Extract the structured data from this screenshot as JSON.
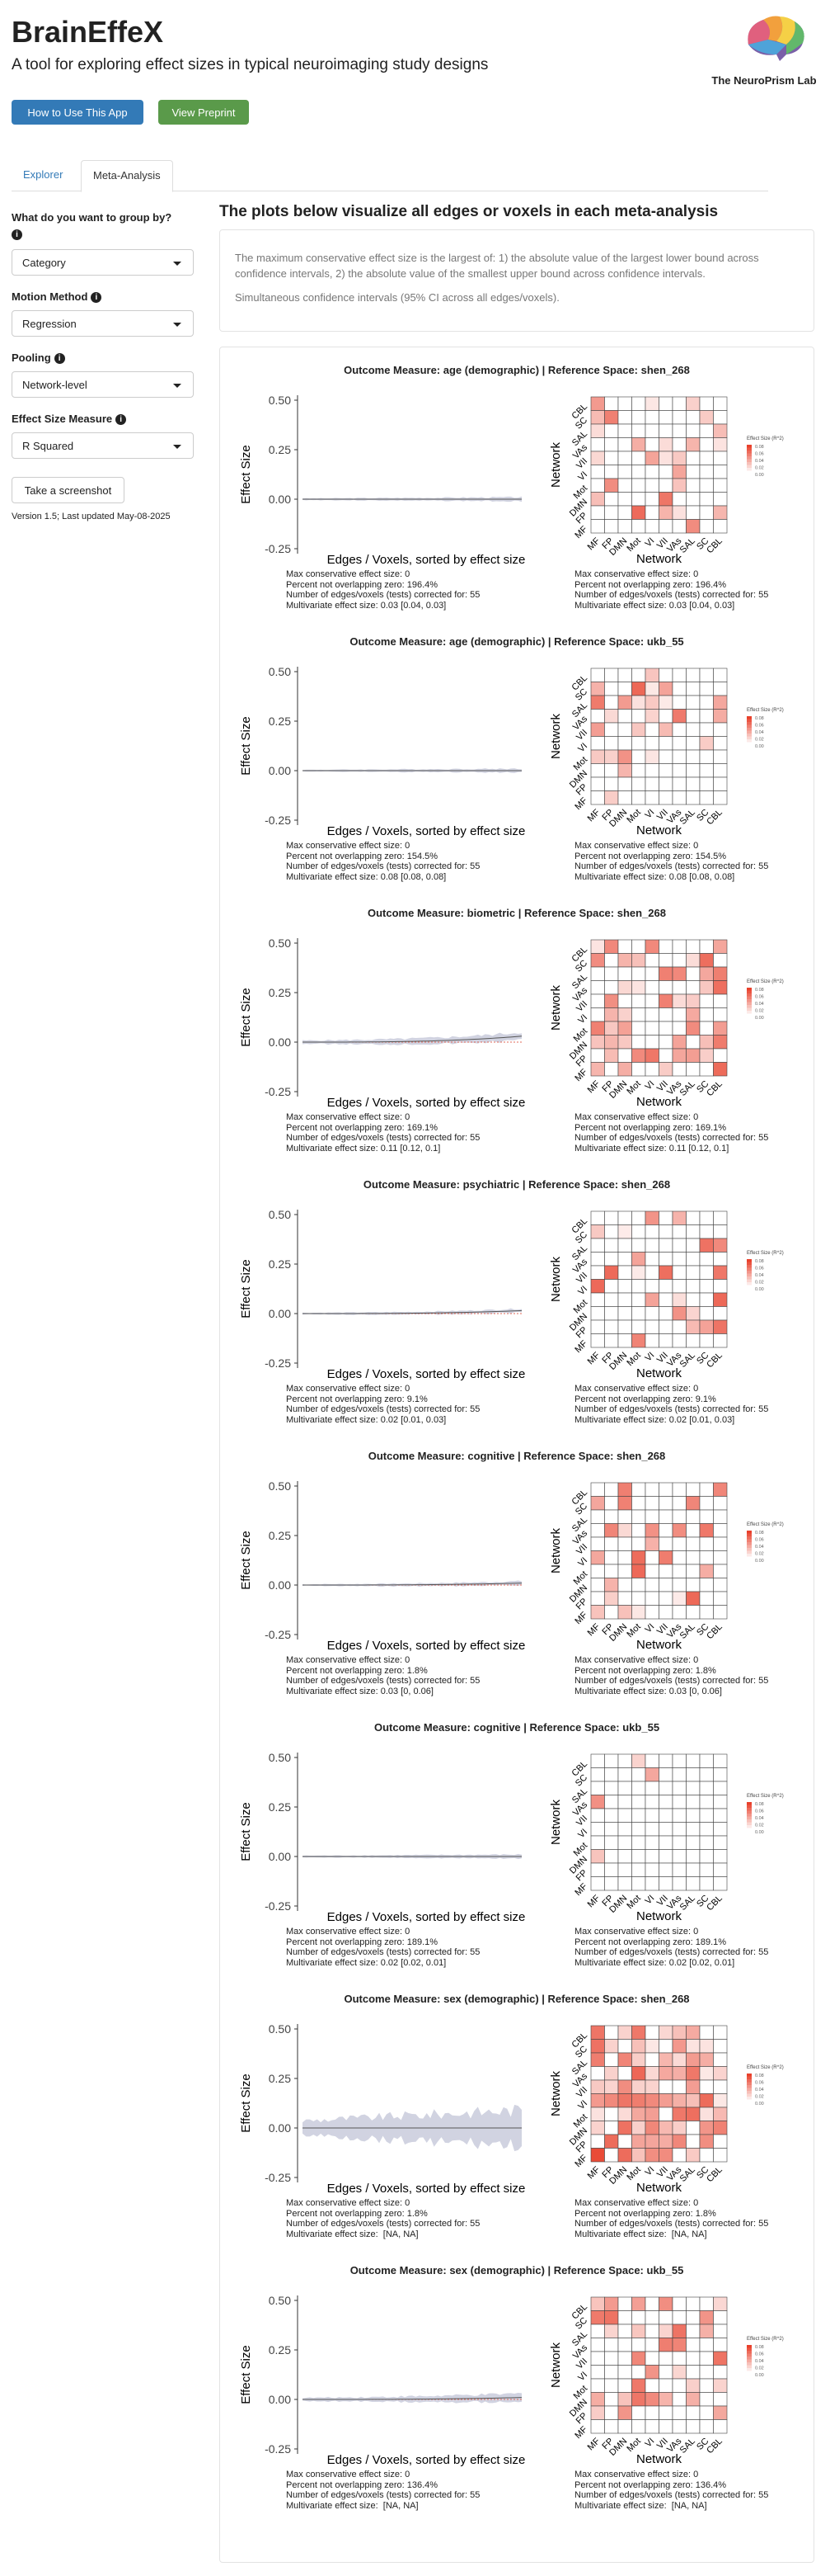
{
  "header": {
    "title": "BrainEffeX",
    "subtitle": "A tool for exploring effect sizes in typical neuroimaging study designs",
    "logo_label": "The NeuroPrism Lab",
    "help_button": "How to Use This App",
    "preprint_button": "View Preprint"
  },
  "tabs": [
    {
      "label": "Explorer"
    },
    {
      "label": "Meta-Analysis"
    }
  ],
  "sidebar": {
    "group_by": {
      "label": "What do you want to group by?",
      "value": "Category"
    },
    "motion": {
      "label": "Motion Method",
      "value": "Regression"
    },
    "pooling": {
      "label": "Pooling",
      "value": "Network-level"
    },
    "effect_size": {
      "label": "Effect Size Measure",
      "value": "R Squared"
    },
    "screenshot_button": "Take a screenshot",
    "version": "Version 1.5; Last updated May-08-2025"
  },
  "main": {
    "heading": "The plots below visualize all edges or voxels in each meta-analysis",
    "info_p1": "The maximum conservative effect size is the largest of: 1) the absolute value of the largest lower bound across confidence intervals, 2) the absolute value of the smallest upper bound across confidence intervals.",
    "info_p2": "Simultaneous confidence intervals (95% CI across all edges/voxels)."
  },
  "colors": {
    "heat_max": "#e8412c",
    "heat_low": "#fde5dc",
    "line": "#e06a5a",
    "ci": "#c9cbdc"
  },
  "chart_data": {
    "type": "line+heatmap",
    "title_prefix": "Outcome Measure:",
    "reference_prefix": "Reference Space:",
    "xlabel": "Edges / Voxels, sorted by effect size",
    "ylabel": "Effect Size",
    "yticks": [
      "0.50",
      "0.25",
      "0.00",
      "-0.25"
    ],
    "ylim": [
      -0.25,
      0.5
    ],
    "heatmap_xlabel": "Network",
    "heatmap_ylabel": "Network",
    "networks": [
      "MF",
      "FP",
      "DMN",
      "Mot",
      "VI",
      "VII",
      "VAs",
      "SAL",
      "SC",
      "CBL"
    ],
    "legend_title": "Effect Size (R^2)",
    "legend_ticks": [
      "0.08",
      "0.06",
      "0.04",
      "0.02",
      "0.00"
    ],
    "panels": [
      {
        "outcome": "age (demographic)",
        "space": "shen_268",
        "left_stats": [
          "Max conservative effect size: 0",
          "Percent not overlapping zero: 196.4%",
          "Number of edges/voxels (tests) corrected for: 55",
          "Multivariate effect size: 0.03 [0.04, 0.03]"
        ],
        "right_stats": [
          "Max conservative effect size: 0",
          "Percent not overlapping zero: 196.4%",
          "Number of edges/voxels (tests) corrected for: 55",
          "Multivariate effect size: 0.03 [0.04, 0.03]"
        ]
      },
      {
        "outcome": "age (demographic)",
        "space": "ukb_55",
        "left_stats": [
          "Max conservative effect size: 0",
          "Percent not overlapping zero: 154.5%",
          "Number of edges/voxels (tests) corrected for: 55",
          "Multivariate effect size: 0.08 [0.08, 0.08]"
        ],
        "right_stats": [
          "Max conservative effect size: 0",
          "Percent not overlapping zero: 154.5%",
          "Number of edges/voxels (tests) corrected for: 55",
          "Multivariate effect size: 0.08 [0.08, 0.08]"
        ]
      },
      {
        "outcome": "biometric",
        "space": "shen_268",
        "left_stats": [
          "Max conservative effect size: 0",
          "Percent not overlapping zero: 169.1%",
          "Number of edges/voxels (tests) corrected for: 55",
          "Multivariate effect size: 0.11 [0.12, 0.1]"
        ],
        "right_stats": [
          "Max conservative effect size: 0",
          "Percent not overlapping zero: 169.1%",
          "Number of edges/voxels (tests) corrected for: 55",
          "Multivariate effect size: 0.11 [0.12, 0.1]"
        ]
      },
      {
        "outcome": "psychiatric",
        "space": "shen_268",
        "left_stats": [
          "Max conservative effect size: 0",
          "Percent not overlapping zero: 9.1%",
          "Number of edges/voxels (tests) corrected for: 55",
          "Multivariate effect size: 0.02 [0.01, 0.03]"
        ],
        "right_stats": [
          "Max conservative effect size: 0",
          "Percent not overlapping zero: 9.1%",
          "Number of edges/voxels (tests) corrected for: 55",
          "Multivariate effect size: 0.02 [0.01, 0.03]"
        ]
      },
      {
        "outcome": "cognitive",
        "space": "shen_268",
        "left_stats": [
          "Max conservative effect size: 0",
          "Percent not overlapping zero: 1.8%",
          "Number of edges/voxels (tests) corrected for: 55",
          "Multivariate effect size: 0.03 [0, 0.06]"
        ],
        "right_stats": [
          "Max conservative effect size: 0",
          "Percent not overlapping zero: 1.8%",
          "Number of edges/voxels (tests) corrected for: 55",
          "Multivariate effect size: 0.03 [0, 0.06]"
        ]
      },
      {
        "outcome": "cognitive",
        "space": "ukb_55",
        "left_stats": [
          "Max conservative effect size: 0",
          "Percent not overlapping zero: 189.1%",
          "Number of edges/voxels (tests) corrected for: 55",
          "Multivariate effect size: 0.02 [0.02, 0.01]"
        ],
        "right_stats": [
          "Max conservative effect size: 0",
          "Percent not overlapping zero: 189.1%",
          "Number of edges/voxels (tests) corrected for: 55",
          "Multivariate effect size: 0.02 [0.02, 0.01]"
        ]
      },
      {
        "outcome": "sex (demographic)",
        "space": "shen_268",
        "left_stats": [
          "Max conservative effect size: 0",
          "Percent not overlapping zero: 1.8%",
          "Number of edges/voxels (tests) corrected for: 55",
          "Multivariate effect size:  [NA, NA]"
        ],
        "right_stats": [
          "Max conservative effect size: 0",
          "Percent not overlapping zero: 1.8%",
          "Number of edges/voxels (tests) corrected for: 55",
          "Multivariate effect size:  [NA, NA]"
        ]
      },
      {
        "outcome": "sex (demographic)",
        "space": "ukb_55",
        "left_stats": [
          "Max conservative effect size: 0",
          "Percent not overlapping zero: 136.4%",
          "Number of edges/voxels (tests) corrected for: 55",
          "Multivariate effect size:  [NA, NA]"
        ],
        "right_stats": [
          "Max conservative effect size: 0",
          "Percent not overlapping zero: 136.4%",
          "Number of edges/voxels (tests) corrected for: 55",
          "Multivariate effect size:  [NA, NA]"
        ]
      }
    ]
  }
}
